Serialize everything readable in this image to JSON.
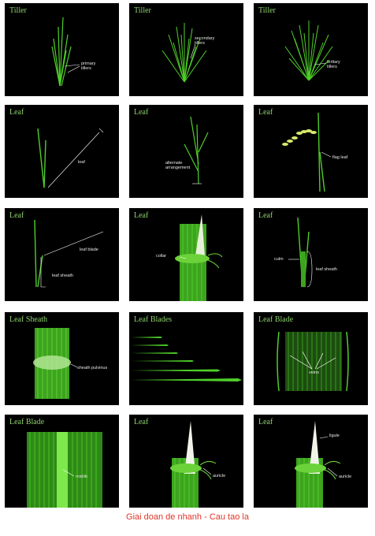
{
  "panels": [
    {
      "title": "Tiller",
      "labels": [
        "primary\ntillers"
      ]
    },
    {
      "title": "Tiller",
      "labels": [
        "secondary\ntillers"
      ]
    },
    {
      "title": "Tiller",
      "labels": [
        "tertiary\ntillers"
      ]
    },
    {
      "title": "Leaf",
      "labels": [
        "leaf"
      ]
    },
    {
      "title": "Leaf",
      "labels": [
        "alternate\narrangement"
      ]
    },
    {
      "title": "Leaf",
      "labels": [
        "flag leaf"
      ]
    },
    {
      "title": "Leaf",
      "labels": [
        "leaf blade",
        "leaf sheath"
      ]
    },
    {
      "title": "Leaf",
      "labels": [
        "collar"
      ]
    },
    {
      "title": "Leaf",
      "labels": [
        "culm",
        "leaf sheath"
      ]
    },
    {
      "title": "Leaf  Sheath",
      "labels": [
        "sheath pulvinus"
      ]
    },
    {
      "title": "Leaf  Blades",
      "labels": []
    },
    {
      "title": "Leaf  Blade",
      "labels": [
        "veins"
      ]
    },
    {
      "title": "Leaf  Blade",
      "labels": [
        "midrib"
      ]
    },
    {
      "title": "Leaf",
      "labels": [
        "auricle"
      ]
    },
    {
      "title": "Leaf",
      "labels": [
        "ligule",
        "auricle"
      ]
    }
  ],
  "caption": "Giai doan de nhanh - Cau tao la",
  "colors": {
    "plant": "#4fcf2a",
    "title": "#8ed26c",
    "caption": "#e0362a"
  }
}
